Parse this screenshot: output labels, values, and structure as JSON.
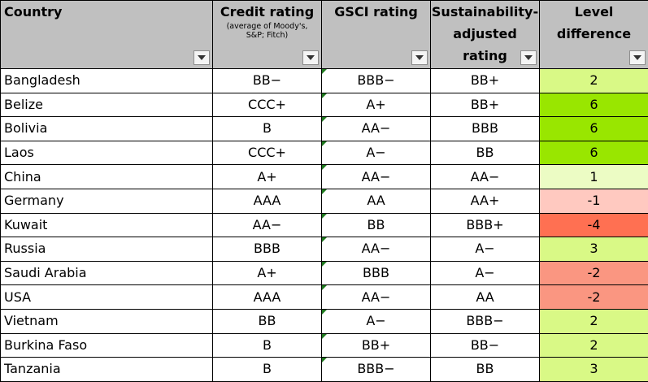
{
  "headers": {
    "country": "Country",
    "credit_rating": "Credit rating",
    "credit_rating_note_1": "(average of  Moody's,",
    "credit_rating_note_2": "S&P; Fitch)",
    "gsci_rating": "GSCI  rating",
    "sust_line1": "Sustainability-",
    "sust_line2": "adjusted",
    "sust_line3": "rating",
    "level_line1": "Level",
    "level_line2": "difference"
  },
  "icons": {
    "filter": "dropdown-filter-arrow-icon",
    "note": "green-triangle-note-icon"
  },
  "level_colors": {
    "6": "#99e600",
    "3": "#d9f986",
    "2": "#d9f986",
    "1": "#ecfcc4",
    "-1": "#ffc9c0",
    "-2": "#fa9681",
    "-4": "#ff7052"
  },
  "rows": [
    {
      "country": "Bangladesh",
      "credit": "BB−",
      "gsci": "BBB−",
      "sust": "BB+",
      "diff": "2"
    },
    {
      "country": "Belize",
      "credit": "CCC+",
      "gsci": "A+",
      "sust": "BB+",
      "diff": "6"
    },
    {
      "country": "Bolivia",
      "credit": "B",
      "gsci": "AA−",
      "sust": "BBB",
      "diff": "6"
    },
    {
      "country": "Laos",
      "credit": "CCC+",
      "gsci": "A−",
      "sust": "BB",
      "diff": "6"
    },
    {
      "country": "China",
      "credit": "A+",
      "gsci": "AA−",
      "sust": "AA−",
      "diff": "1"
    },
    {
      "country": "Germany",
      "credit": "AAA",
      "gsci": "AA",
      "sust": "AA+",
      "diff": "-1"
    },
    {
      "country": "Kuwait",
      "credit": "AA−",
      "gsci": "BB",
      "sust": "BBB+",
      "diff": "-4"
    },
    {
      "country": "Russia",
      "credit": "BBB",
      "gsci": "AA−",
      "sust": "A−",
      "diff": "3"
    },
    {
      "country": "Saudi Arabia",
      "credit": "A+",
      "gsci": "BBB",
      "sust": "A−",
      "diff": "-2"
    },
    {
      "country": "USA",
      "credit": "AAA",
      "gsci": "AA−",
      "sust": "AA",
      "diff": "-2"
    },
    {
      "country": "Vietnam",
      "credit": "BB",
      "gsci": "A−",
      "sust": "BBB−",
      "diff": "2"
    },
    {
      "country": "Burkina Faso",
      "credit": "B",
      "gsci": "BB+",
      "sust": "BB−",
      "diff": "2"
    },
    {
      "country": "Tanzania",
      "credit": "B",
      "gsci": "BBB−",
      "sust": "BB",
      "diff": "3"
    }
  ]
}
